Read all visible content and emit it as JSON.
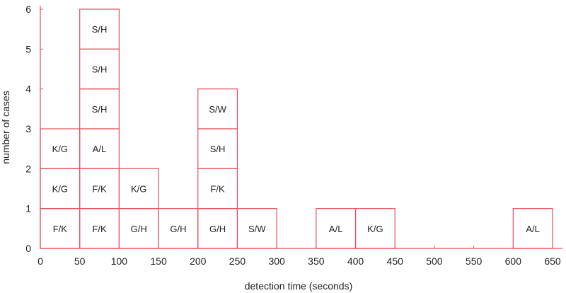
{
  "chart_data": {
    "type": "bar",
    "subtype": "stacked-case-histogram",
    "xlabel": "detection time (seconds)",
    "ylabel": "number of cases",
    "xlim": [
      0,
      650
    ],
    "ylim": [
      0,
      6
    ],
    "bin_width": 50,
    "x_ticks": [
      0,
      50,
      100,
      150,
      200,
      250,
      300,
      350,
      400,
      450,
      500,
      550,
      600,
      650
    ],
    "y_ticks": [
      0,
      1,
      2,
      3,
      4,
      5,
      6
    ],
    "grid": false,
    "colors": {
      "box": "#e0505a",
      "axis": "#e0505a",
      "text": "#222222"
    },
    "bins": [
      {
        "x_start": 0,
        "cases": [
          "F/K",
          "K/G",
          "K/G"
        ]
      },
      {
        "x_start": 50,
        "cases": [
          "F/K",
          "F/K",
          "A/L",
          "S/H",
          "S/H",
          "S/H"
        ]
      },
      {
        "x_start": 100,
        "cases": [
          "G/H",
          "K/G"
        ]
      },
      {
        "x_start": 150,
        "cases": [
          "G/H"
        ]
      },
      {
        "x_start": 200,
        "cases": [
          "G/H",
          "F/K",
          "S/H",
          "S/W"
        ]
      },
      {
        "x_start": 250,
        "cases": [
          "S/W"
        ]
      },
      {
        "x_start": 350,
        "cases": [
          "A/L"
        ]
      },
      {
        "x_start": 400,
        "cases": [
          "K/G"
        ]
      },
      {
        "x_start": 600,
        "cases": [
          "A/L"
        ]
      }
    ]
  }
}
